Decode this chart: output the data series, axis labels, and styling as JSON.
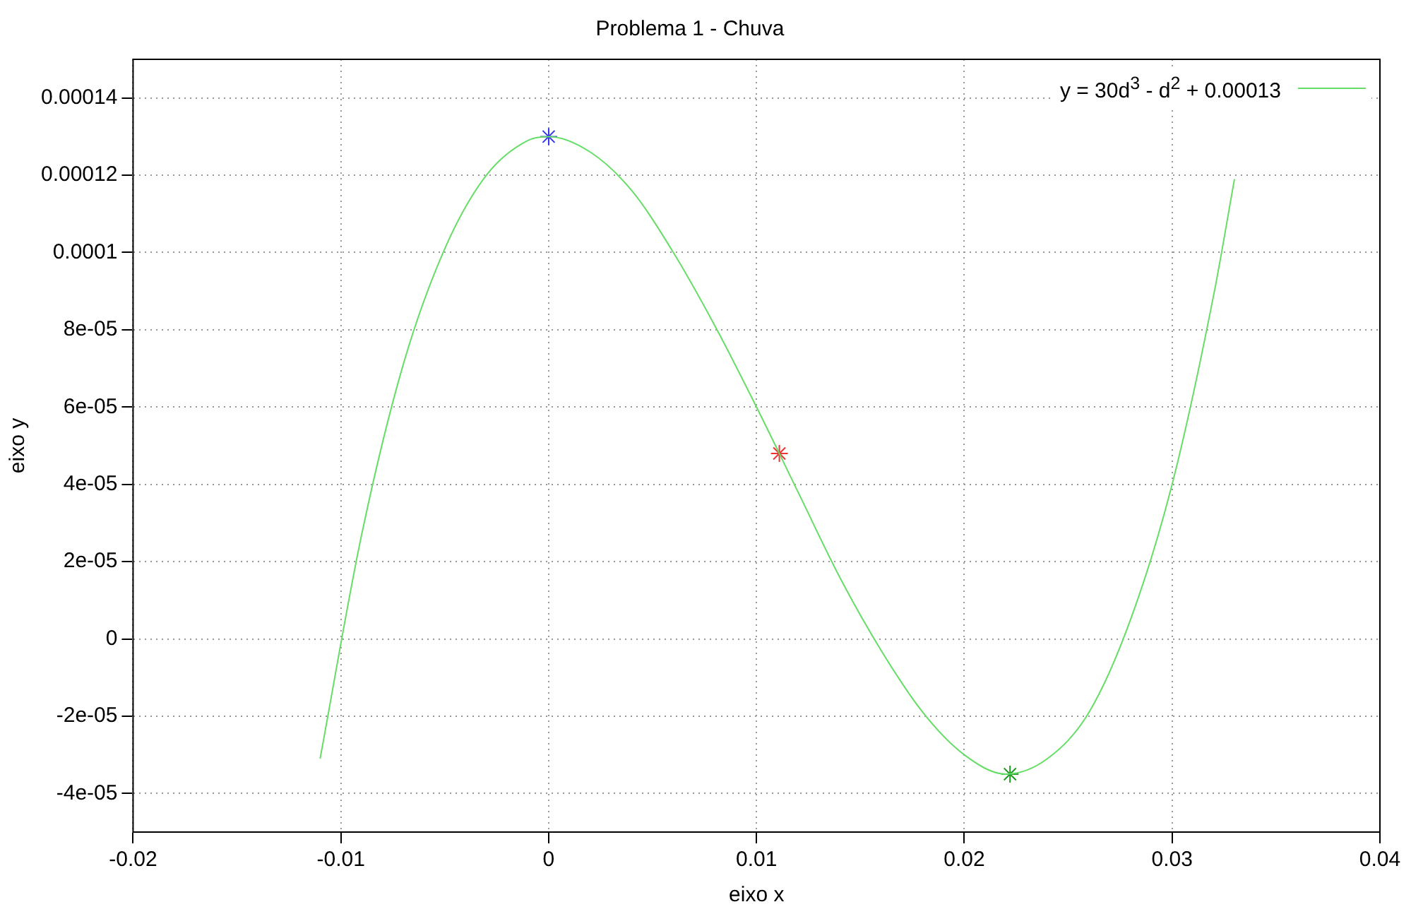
{
  "chart_data": {
    "type": "line",
    "title": "Problema 1 - Chuva",
    "xlabel": "eixo x",
    "ylabel": "eixo y",
    "xlim": [
      -0.02,
      0.04
    ],
    "xticks": [
      -0.02,
      -0.01,
      0,
      0.01,
      0.02,
      0.03,
      0.04
    ],
    "ylim": [
      -5e-05,
      0.00015
    ],
    "yticks": [
      {
        "value": -4e-05,
        "label": "-4e-05"
      },
      {
        "value": -2e-05,
        "label": "-2e-05"
      },
      0,
      {
        "value": 2e-05,
        "label": "2e-05"
      },
      {
        "value": 4e-05,
        "label": "4e-05"
      },
      {
        "value": 6e-05,
        "label": "6e-05"
      },
      {
        "value": 8e-05,
        "label": "8e-05"
      },
      0.0001,
      0.00012,
      0.00014
    ],
    "grid": true,
    "legend": "top right",
    "series": [
      {
        "name": "y = 30d$^{3}$ - d$^{2}$ + 0.00013",
        "marker": "none",
        "color": "#66dd66",
        "x": [
          -0.011,
          -0.009,
          -0.007,
          -0.005,
          -0.003,
          -0.001,
          0,
          0.002,
          0.004,
          0.006,
          0.008,
          0.01,
          0.012,
          0.014,
          0.016,
          0.018,
          0.02,
          0.022,
          0.024,
          0.026,
          0.028,
          0.03,
          0.032,
          0.033
        ],
        "values": [
          -3.1e-05,
          2.7e-05,
          7.1e-05,
          0.000101,
          0.00012,
          0.000129,
          0.00013,
          0.000126,
          0.000116,
          0.0001,
          8.1e-05,
          6e-05,
          3.8e-05,
          1.6e-05,
          -3e-06,
          -1.9e-05,
          -3e-05,
          -3.5e-05,
          -3.1e-05,
          -1.9e-05,
          5e-06,
          4e-05,
          8.9e-05,
          0.000119
        ]
      },
      {
        "type": "scatter",
        "marker": "cross",
        "color": "#3333ee",
        "x": [
          0
        ],
        "values": [
          0.00013
        ]
      },
      {
        "type": "scatter",
        "marker": "cross",
        "color": "#ee3333",
        "x": [
          0.0111
        ],
        "values": [
          4.8e-05
        ]
      },
      {
        "type": "scatter",
        "marker": "cross",
        "color": "#229922",
        "x": [
          0.0222
        ],
        "values": [
          -3.5e-05
        ]
      }
    ]
  }
}
